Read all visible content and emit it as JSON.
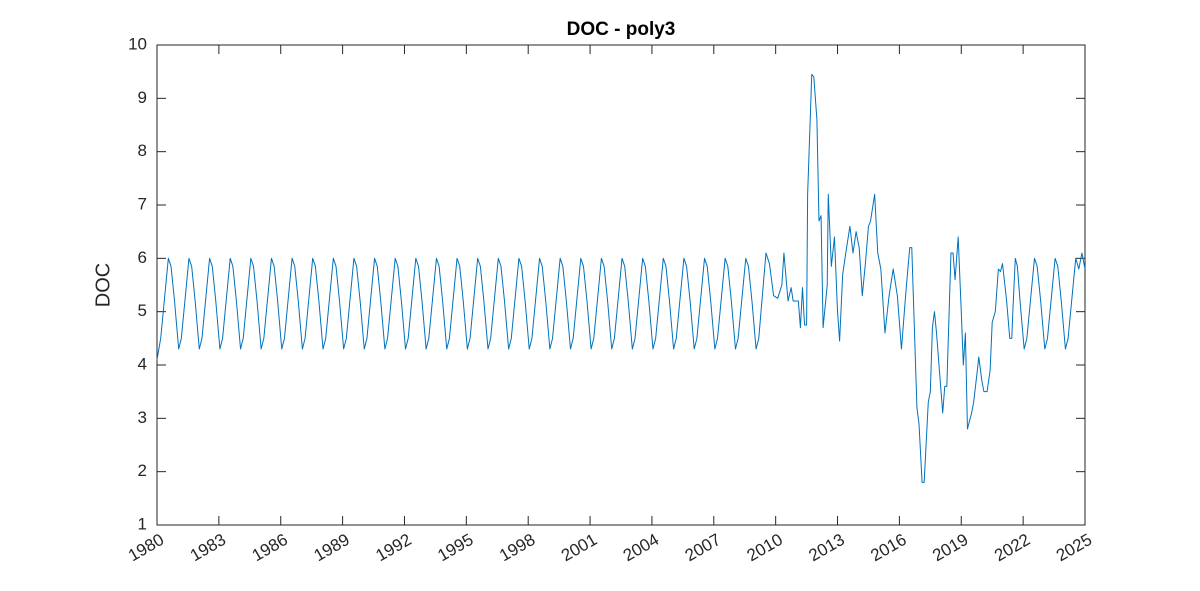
{
  "chart_data": {
    "type": "line",
    "title": "DOC - poly3",
    "ylabel": "DOC",
    "color": "#0072bd",
    "xlim": [
      1980,
      2025
    ],
    "xticks": [
      1980,
      1983,
      1986,
      1989,
      1992,
      1995,
      1998,
      2001,
      2004,
      2007,
      2010,
      2013,
      2016,
      2019,
      2022,
      2025
    ],
    "ylim": [
      1,
      10
    ],
    "yticks": [
      1,
      2,
      3,
      4,
      5,
      6,
      7,
      8,
      9,
      10
    ],
    "x": [
      1980.0,
      1980.18,
      1980.55,
      1980.68,
      1980.85,
      1981.05,
      1981.18,
      1981.55,
      1981.68,
      1981.85,
      1982.05,
      1982.18,
      1982.55,
      1982.68,
      1982.85,
      1983.05,
      1983.18,
      1983.55,
      1983.68,
      1983.85,
      1984.05,
      1984.18,
      1984.55,
      1984.68,
      1984.85,
      1985.05,
      1985.18,
      1985.55,
      1985.68,
      1985.85,
      1986.05,
      1986.18,
      1986.55,
      1986.68,
      1986.85,
      1987.05,
      1987.18,
      1987.55,
      1987.68,
      1987.85,
      1988.05,
      1988.18,
      1988.55,
      1988.68,
      1988.85,
      1989.05,
      1989.18,
      1989.55,
      1989.68,
      1989.85,
      1990.05,
      1990.18,
      1990.55,
      1990.68,
      1990.85,
      1991.05,
      1991.18,
      1991.55,
      1991.68,
      1991.85,
      1992.05,
      1992.18,
      1992.55,
      1992.68,
      1992.85,
      1993.05,
      1993.18,
      1993.55,
      1993.68,
      1993.85,
      1994.05,
      1994.18,
      1994.55,
      1994.68,
      1994.85,
      1995.05,
      1995.18,
      1995.55,
      1995.68,
      1995.85,
      1996.05,
      1996.18,
      1996.55,
      1996.68,
      1996.85,
      1997.05,
      1997.18,
      1997.55,
      1997.68,
      1997.85,
      1998.05,
      1998.18,
      1998.55,
      1998.68,
      1998.85,
      1999.05,
      1999.18,
      1999.55,
      1999.68,
      1999.85,
      2000.05,
      2000.18,
      2000.55,
      2000.68,
      2000.85,
      2001.05,
      2001.18,
      2001.55,
      2001.68,
      2001.85,
      2002.05,
      2002.18,
      2002.55,
      2002.68,
      2002.85,
      2003.05,
      2003.18,
      2003.55,
      2003.68,
      2003.85,
      2004.05,
      2004.18,
      2004.55,
      2004.68,
      2004.85,
      2005.05,
      2005.18,
      2005.55,
      2005.68,
      2005.85,
      2006.05,
      2006.18,
      2006.55,
      2006.68,
      2006.85,
      2007.05,
      2007.18,
      2007.55,
      2007.68,
      2007.85,
      2008.05,
      2008.18,
      2008.55,
      2008.68,
      2008.85,
      2009.05,
      2009.18,
      2009.53,
      2009.7,
      2009.9,
      2010.1,
      2010.3,
      2010.4,
      2010.6,
      2010.75,
      2010.85,
      2011.1,
      2011.2,
      2011.3,
      2011.4,
      2011.5,
      2011.55,
      2011.75,
      2011.85,
      2012.0,
      2012.1,
      2012.2,
      2012.3,
      2012.5,
      2012.55,
      2012.7,
      2012.85,
      2013.0,
      2013.1,
      2013.25,
      2013.4,
      2013.6,
      2013.75,
      2013.9,
      2014.05,
      2014.2,
      2014.35,
      2014.5,
      2014.6,
      2014.8,
      2014.95,
      2015.1,
      2015.3,
      2015.5,
      2015.7,
      2015.9,
      2016.1,
      2016.3,
      2016.5,
      2016.6,
      2016.85,
      2016.95,
      2017.1,
      2017.2,
      2017.4,
      2017.5,
      2017.6,
      2017.7,
      2017.8,
      2018.0,
      2018.1,
      2018.2,
      2018.3,
      2018.5,
      2018.6,
      2018.7,
      2018.85,
      2019.0,
      2019.1,
      2019.2,
      2019.3,
      2019.5,
      2019.6,
      2019.75,
      2019.85,
      2020.0,
      2020.1,
      2020.25,
      2020.4,
      2020.5,
      2020.65,
      2020.8,
      2020.9,
      2021.0,
      2021.2,
      2021.35,
      2021.45,
      2021.5,
      2021.62,
      2021.72,
      2021.85,
      2022.05,
      2022.18,
      2022.55,
      2022.68,
      2022.85,
      2023.05,
      2023.18,
      2023.55,
      2023.68,
      2023.85,
      2024.05,
      2024.18,
      2024.55,
      2024.7,
      2024.85,
      2025.0
    ],
    "values": [
      4.1,
      4.5,
      6.0,
      5.85,
      5.2,
      4.3,
      4.5,
      6.0,
      5.85,
      5.2,
      4.3,
      4.5,
      6.0,
      5.85,
      5.2,
      4.3,
      4.5,
      6.0,
      5.85,
      5.2,
      4.3,
      4.5,
      6.0,
      5.85,
      5.2,
      4.3,
      4.5,
      6.0,
      5.85,
      5.2,
      4.3,
      4.5,
      6.0,
      5.85,
      5.2,
      4.3,
      4.5,
      6.0,
      5.85,
      5.2,
      4.3,
      4.5,
      6.0,
      5.85,
      5.2,
      4.3,
      4.5,
      6.0,
      5.85,
      5.2,
      4.3,
      4.5,
      6.0,
      5.85,
      5.2,
      4.3,
      4.5,
      6.0,
      5.85,
      5.2,
      4.3,
      4.5,
      6.0,
      5.85,
      5.2,
      4.3,
      4.5,
      6.0,
      5.85,
      5.2,
      4.3,
      4.5,
      6.0,
      5.85,
      5.2,
      4.3,
      4.5,
      6.0,
      5.85,
      5.2,
      4.3,
      4.5,
      6.0,
      5.85,
      5.2,
      4.3,
      4.5,
      6.0,
      5.85,
      5.2,
      4.3,
      4.5,
      6.0,
      5.85,
      5.2,
      4.3,
      4.5,
      6.0,
      5.85,
      5.2,
      4.3,
      4.5,
      6.0,
      5.85,
      5.2,
      4.3,
      4.5,
      6.0,
      5.85,
      5.2,
      4.3,
      4.5,
      6.0,
      5.85,
      5.2,
      4.3,
      4.5,
      6.0,
      5.85,
      5.2,
      4.3,
      4.5,
      6.0,
      5.85,
      5.2,
      4.3,
      4.5,
      6.0,
      5.85,
      5.2,
      4.3,
      4.5,
      6.0,
      5.85,
      5.2,
      4.3,
      4.5,
      6.0,
      5.85,
      5.2,
      4.3,
      4.5,
      6.0,
      5.85,
      5.2,
      4.3,
      4.5,
      6.1,
      5.9,
      5.3,
      5.25,
      5.5,
      6.1,
      5.2,
      5.45,
      5.2,
      5.2,
      4.7,
      5.45,
      4.75,
      4.75,
      7.2,
      9.45,
      9.4,
      8.6,
      6.7,
      6.8,
      4.7,
      5.5,
      7.2,
      5.85,
      6.4,
      5.0,
      4.45,
      5.7,
      6.1,
      6.6,
      6.1,
      6.5,
      6.2,
      5.3,
      5.9,
      6.6,
      6.7,
      7.2,
      6.1,
      5.8,
      4.6,
      5.3,
      5.8,
      5.3,
      4.3,
      5.3,
      6.2,
      6.2,
      3.2,
      2.9,
      1.8,
      1.8,
      3.3,
      3.5,
      4.7,
      5.0,
      4.6,
      3.6,
      3.1,
      3.6,
      3.6,
      6.1,
      6.1,
      5.6,
      6.4,
      5.0,
      4.0,
      4.6,
      2.8,
      3.1,
      3.3,
      3.8,
      4.15,
      3.7,
      3.5,
      3.5,
      3.9,
      4.8,
      5.0,
      5.8,
      5.75,
      5.9,
      5.2,
      4.5,
      4.5,
      5.0,
      6.0,
      5.85,
      5.2,
      4.3,
      4.5,
      6.0,
      5.85,
      5.2,
      4.3,
      4.5,
      6.0,
      5.85,
      5.2,
      4.3,
      4.5,
      6.0,
      5.8,
      6.1,
      5.8
    ]
  }
}
